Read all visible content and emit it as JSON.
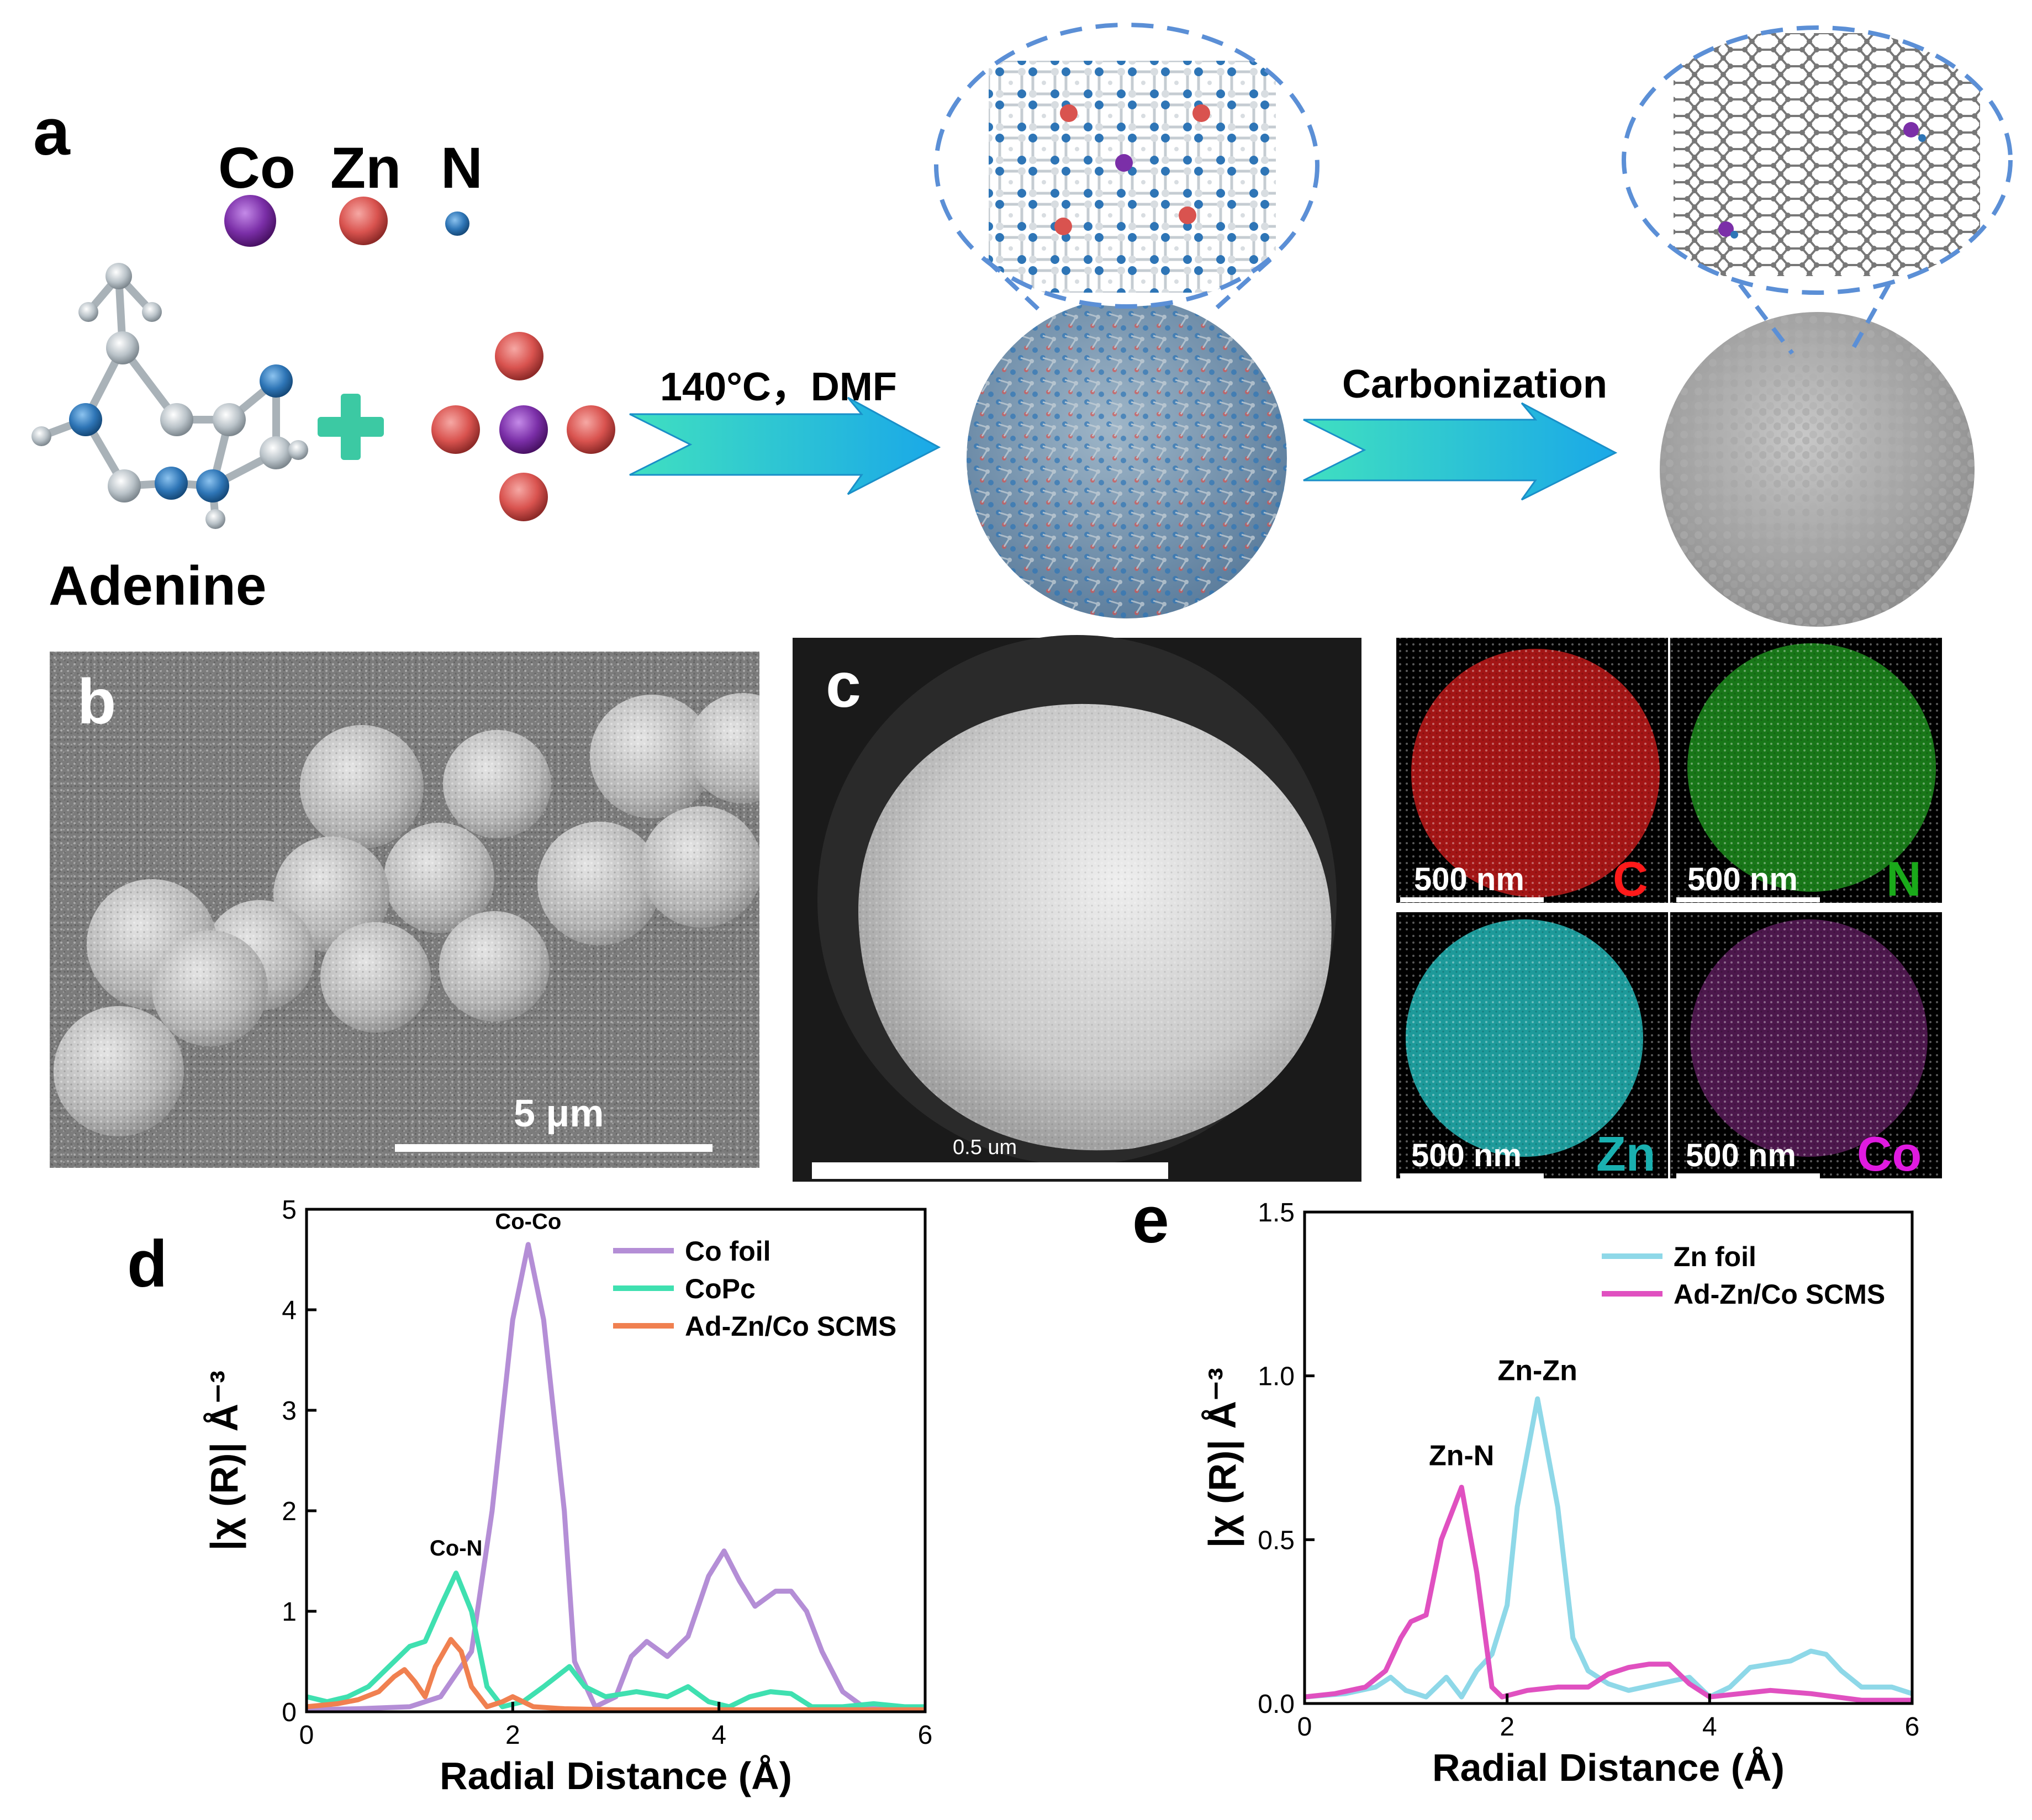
{
  "panels": {
    "a": {
      "letter": "a",
      "legend": [
        {
          "symbol": "Co",
          "color": "#7b2fa8"
        },
        {
          "symbol": "Zn",
          "color": "#d9534f"
        },
        {
          "symbol": "N",
          "color": "#2e75b6"
        }
      ],
      "molecule_label": "Adenine",
      "step1_label": "140°C，DMF",
      "step2_label": "Carbonization",
      "arrow_color": "#2ab7e8"
    },
    "b": {
      "letter": "b",
      "scale_label": "5 μm"
    },
    "c": {
      "letter": "c",
      "scale_label": "0.5 um"
    },
    "maps": [
      {
        "element": "C",
        "scale": "500 nm",
        "element_color": "#ff1a1a",
        "map_color": "#cc1a1a"
      },
      {
        "element": "N",
        "scale": "500 nm",
        "element_color": "#1aaa1a",
        "map_color": "#22aa22"
      },
      {
        "element": "Zn",
        "scale": "500 nm",
        "element_color": "#1ab0b0",
        "map_color": "#22b5b5"
      },
      {
        "element": "Co",
        "scale": "500 nm",
        "element_color": "#e01ae0",
        "map_color": "#8a2a8a"
      }
    ],
    "d": {
      "letter": "d"
    },
    "e": {
      "letter": "e"
    }
  },
  "chart_data": [
    {
      "id": "d",
      "type": "line",
      "xlabel": "Radial Distance (Å)",
      "ylabel": "|χ (R)| Å⁻³",
      "xlim": [
        0,
        6
      ],
      "ylim": [
        0,
        5
      ],
      "xticks": [
        0,
        2,
        4,
        6
      ],
      "yticks": [
        0,
        1,
        2,
        3,
        4,
        5
      ],
      "legend_position": "top-right",
      "series": [
        {
          "name": "Co foil",
          "color": "#b48ed6",
          "points": [
            [
              0,
              0.02
            ],
            [
              0.5,
              0.03
            ],
            [
              1.0,
              0.05
            ],
            [
              1.3,
              0.15
            ],
            [
              1.6,
              0.6
            ],
            [
              1.8,
              2.0
            ],
            [
              2.0,
              3.9
            ],
            [
              2.15,
              4.65
            ],
            [
              2.3,
              3.9
            ],
            [
              2.5,
              2.0
            ],
            [
              2.6,
              0.5
            ],
            [
              2.8,
              0.05
            ],
            [
              3.0,
              0.15
            ],
            [
              3.15,
              0.55
            ],
            [
              3.3,
              0.7
            ],
            [
              3.5,
              0.55
            ],
            [
              3.7,
              0.75
            ],
            [
              3.9,
              1.35
            ],
            [
              4.05,
              1.6
            ],
            [
              4.2,
              1.3
            ],
            [
              4.35,
              1.05
            ],
            [
              4.55,
              1.2
            ],
            [
              4.7,
              1.2
            ],
            [
              4.85,
              1.0
            ],
            [
              5.0,
              0.6
            ],
            [
              5.2,
              0.2
            ],
            [
              5.4,
              0.05
            ],
            [
              5.7,
              0.03
            ],
            [
              6.0,
              0.02
            ]
          ]
        },
        {
          "name": "CoPc",
          "color": "#3fe0b0",
          "points": [
            [
              0,
              0.15
            ],
            [
              0.2,
              0.1
            ],
            [
              0.4,
              0.15
            ],
            [
              0.6,
              0.25
            ],
            [
              0.8,
              0.45
            ],
            [
              1.0,
              0.65
            ],
            [
              1.15,
              0.7
            ],
            [
              1.3,
              1.05
            ],
            [
              1.45,
              1.38
            ],
            [
              1.6,
              1.0
            ],
            [
              1.75,
              0.25
            ],
            [
              1.9,
              0.05
            ],
            [
              2.1,
              0.1
            ],
            [
              2.3,
              0.25
            ],
            [
              2.55,
              0.45
            ],
            [
              2.7,
              0.25
            ],
            [
              2.9,
              0.15
            ],
            [
              3.2,
              0.2
            ],
            [
              3.5,
              0.15
            ],
            [
              3.7,
              0.25
            ],
            [
              3.9,
              0.1
            ],
            [
              4.1,
              0.05
            ],
            [
              4.3,
              0.15
            ],
            [
              4.5,
              0.2
            ],
            [
              4.7,
              0.18
            ],
            [
              4.9,
              0.05
            ],
            [
              5.2,
              0.05
            ],
            [
              5.5,
              0.08
            ],
            [
              5.8,
              0.05
            ],
            [
              6.0,
              0.05
            ]
          ]
        },
        {
          "name": "Ad-Zn/Co SCMS",
          "color": "#f08050",
          "points": [
            [
              0,
              0.05
            ],
            [
              0.3,
              0.08
            ],
            [
              0.5,
              0.12
            ],
            [
              0.7,
              0.2
            ],
            [
              0.85,
              0.35
            ],
            [
              0.95,
              0.42
            ],
            [
              1.05,
              0.3
            ],
            [
              1.15,
              0.15
            ],
            [
              1.25,
              0.45
            ],
            [
              1.4,
              0.72
            ],
            [
              1.5,
              0.6
            ],
            [
              1.6,
              0.25
            ],
            [
              1.75,
              0.05
            ],
            [
              1.9,
              0.1
            ],
            [
              2.0,
              0.15
            ],
            [
              2.2,
              0.05
            ],
            [
              2.5,
              0.03
            ],
            [
              3.0,
              0.02
            ],
            [
              4.0,
              0.02
            ],
            [
              5.0,
              0.02
            ],
            [
              6.0,
              0.02
            ]
          ]
        }
      ],
      "annotations": [
        {
          "text": "Co-Co",
          "x": 2.15,
          "y": 4.75
        },
        {
          "text": "Co-N",
          "x": 1.45,
          "y": 1.5
        }
      ]
    },
    {
      "id": "e",
      "type": "line",
      "xlabel": "Radial Distance (Å)",
      "ylabel": "|χ (R)| Å⁻³",
      "xlim": [
        0,
        6
      ],
      "ylim": [
        0,
        1.5
      ],
      "xticks": [
        0,
        2,
        4,
        6
      ],
      "yticks": [
        0.0,
        0.5,
        1.0,
        1.5
      ],
      "legend_position": "top-right",
      "series": [
        {
          "name": "Zn foil",
          "color": "#8ed8e8",
          "points": [
            [
              0,
              0.02
            ],
            [
              0.4,
              0.03
            ],
            [
              0.7,
              0.05
            ],
            [
              0.85,
              0.08
            ],
            [
              1.0,
              0.04
            ],
            [
              1.2,
              0.02
            ],
            [
              1.4,
              0.08
            ],
            [
              1.55,
              0.02
            ],
            [
              1.7,
              0.1
            ],
            [
              1.85,
              0.15
            ],
            [
              2.0,
              0.3
            ],
            [
              2.1,
              0.6
            ],
            [
              2.3,
              0.93
            ],
            [
              2.5,
              0.6
            ],
            [
              2.65,
              0.2
            ],
            [
              2.8,
              0.1
            ],
            [
              3.0,
              0.06
            ],
            [
              3.2,
              0.04
            ],
            [
              3.5,
              0.06
            ],
            [
              3.8,
              0.08
            ],
            [
              4.0,
              0.02
            ],
            [
              4.2,
              0.05
            ],
            [
              4.4,
              0.11
            ],
            [
              4.6,
              0.12
            ],
            [
              4.8,
              0.13
            ],
            [
              5.0,
              0.16
            ],
            [
              5.15,
              0.15
            ],
            [
              5.3,
              0.1
            ],
            [
              5.5,
              0.05
            ],
            [
              5.8,
              0.05
            ],
            [
              6.0,
              0.03
            ]
          ]
        },
        {
          "name": "Ad-Zn/Co SCMS",
          "color": "#e050c0",
          "points": [
            [
              0,
              0.02
            ],
            [
              0.3,
              0.03
            ],
            [
              0.6,
              0.05
            ],
            [
              0.8,
              0.1
            ],
            [
              0.95,
              0.2
            ],
            [
              1.05,
              0.25
            ],
            [
              1.2,
              0.27
            ],
            [
              1.35,
              0.5
            ],
            [
              1.55,
              0.66
            ],
            [
              1.7,
              0.4
            ],
            [
              1.85,
              0.05
            ],
            [
              1.95,
              0.02
            ],
            [
              2.2,
              0.04
            ],
            [
              2.5,
              0.05
            ],
            [
              2.8,
              0.05
            ],
            [
              3.0,
              0.09
            ],
            [
              3.2,
              0.11
            ],
            [
              3.4,
              0.12
            ],
            [
              3.6,
              0.12
            ],
            [
              3.8,
              0.06
            ],
            [
              4.0,
              0.02
            ],
            [
              4.3,
              0.03
            ],
            [
              4.6,
              0.04
            ],
            [
              5.0,
              0.03
            ],
            [
              5.5,
              0.01
            ],
            [
              6.0,
              0.01
            ]
          ]
        }
      ],
      "annotations": [
        {
          "text": "Zn-Zn",
          "x": 2.3,
          "y": 0.97
        },
        {
          "text": "Zn-N",
          "x": 1.55,
          "y": 0.71
        }
      ]
    }
  ]
}
